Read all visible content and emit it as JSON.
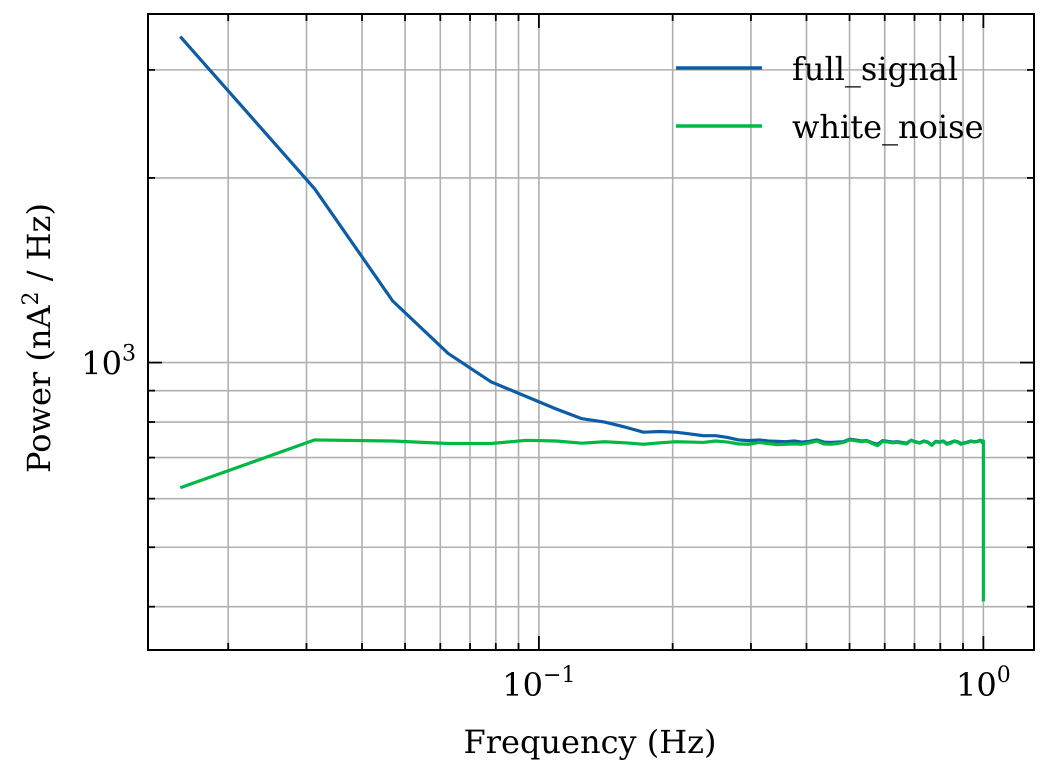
{
  "chart_data": {
    "type": "line",
    "title": "",
    "xlabel": "Frequency (Hz)",
    "ylabel_prefix": "Power (nA",
    "ylabel_sup": "2",
    "ylabel_suffix": " / Hz)",
    "xscale": "log",
    "yscale": "log",
    "xlim": [
      0.0132,
      1.3
    ],
    "ylim": [
      340,
      3700
    ],
    "grid": true,
    "legend_position": "top-right",
    "x_ticks": [
      {
        "value": 0.1,
        "base": "10",
        "exp": "−1"
      },
      {
        "value": 1.0,
        "base": "10",
        "exp": "0"
      }
    ],
    "y_ticks": [
      {
        "value": 1000,
        "base": "10",
        "exp": "3"
      }
    ],
    "series": [
      {
        "name": "full_signal",
        "color": "#0C5DA5",
        "x": [
          0.0156,
          0.0313,
          0.0469,
          0.0625,
          0.0781,
          0.0938,
          0.1094,
          0.125,
          0.1406,
          0.1563,
          0.1719,
          0.1875,
          0.2031,
          0.2188,
          0.2344,
          0.25,
          0.2656,
          0.2813,
          0.2969,
          0.3125,
          0.3281,
          0.3438,
          0.3594,
          0.375,
          0.3906,
          0.4063,
          0.4219,
          0.4375,
          0.4531,
          0.4688,
          0.4844,
          0.5,
          0.5156,
          0.5313,
          0.5469,
          0.5625,
          0.5781,
          0.5938,
          0.6094,
          0.625,
          0.6406,
          0.6563,
          0.6719,
          0.6875,
          0.7031,
          0.7188,
          0.7344,
          0.75,
          0.7656,
          0.7813,
          0.7969,
          0.8125,
          0.8281,
          0.8438,
          0.8594,
          0.875,
          0.8906,
          0.9063,
          0.9219,
          0.9375,
          0.9531,
          0.9688,
          0.9844,
          1.0
        ],
        "y": [
          3400,
          1920,
          1260,
          1035,
          930,
          880,
          840,
          810,
          800,
          785,
          770,
          772,
          770,
          765,
          760,
          760,
          755,
          748,
          746,
          748,
          745,
          744,
          743,
          745,
          742,
          744,
          748,
          742,
          741,
          742,
          743,
          750,
          748,
          745,
          746,
          740,
          736,
          746,
          744,
          742,
          743,
          741,
          739,
          747,
          743,
          740,
          745,
          742,
          734,
          744,
          742,
          745,
          738,
          741,
          745,
          743,
          738,
          740,
          742,
          745,
          743,
          744,
          747,
          738
        ]
      },
      {
        "name": "white_noise",
        "color": "#00B945",
        "x": [
          0.0156,
          0.0313,
          0.0469,
          0.0625,
          0.0781,
          0.0938,
          0.1094,
          0.125,
          0.1406,
          0.1563,
          0.1719,
          0.1875,
          0.2031,
          0.2188,
          0.2344,
          0.25,
          0.2656,
          0.2813,
          0.2969,
          0.3125,
          0.3281,
          0.3438,
          0.3594,
          0.375,
          0.3906,
          0.4063,
          0.4219,
          0.4375,
          0.4531,
          0.4688,
          0.4844,
          0.5,
          0.5156,
          0.5313,
          0.5469,
          0.5625,
          0.5781,
          0.5938,
          0.6094,
          0.625,
          0.6406,
          0.6563,
          0.6719,
          0.6875,
          0.7031,
          0.7188,
          0.7344,
          0.75,
          0.7656,
          0.7813,
          0.7969,
          0.8125,
          0.8281,
          0.8438,
          0.8594,
          0.875,
          0.8906,
          0.9063,
          0.9219,
          0.9375,
          0.9531,
          0.9688,
          0.9844,
          1.0,
          1.0
        ],
        "y": [
          625,
          748,
          745,
          738,
          738,
          747,
          745,
          739,
          743,
          740,
          736,
          740,
          743,
          742,
          741,
          745,
          742,
          737,
          736,
          741,
          738,
          735,
          736,
          737,
          736,
          740,
          745,
          737,
          736,
          738,
          741,
          748,
          746,
          743,
          745,
          738,
          732,
          744,
          742,
          740,
          741,
          739,
          737,
          747,
          742,
          739,
          744,
          741,
          733,
          743,
          741,
          744,
          736,
          739,
          744,
          742,
          736,
          739,
          741,
          744,
          742,
          743,
          746,
          745,
          408
        ]
      }
    ]
  }
}
